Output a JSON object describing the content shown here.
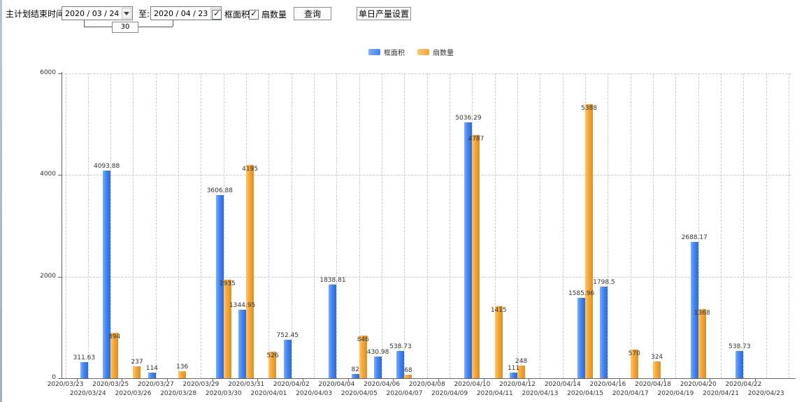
{
  "toolbar": {
    "label_main": "主计划结束时间:",
    "date_from": "2020 / 03 / 24",
    "label_to": "至:",
    "date_to": "2020 / 04 / 23",
    "days_value": "30",
    "checkbox_area_label": "框面积",
    "checkbox_fan_label": "扇数量",
    "checkbox_area_checked": true,
    "checkbox_fan_checked": true,
    "query_button": "查询",
    "daily_output_button": "单日产量设置"
  },
  "chart_data": {
    "type": "bar",
    "title": "",
    "xlabel": "",
    "ylabel": "",
    "ylim": [
      0,
      6000
    ],
    "yticks": [
      0,
      2000,
      4000,
      6000
    ],
    "grid": true,
    "legend_position": "top",
    "categories": [
      "2020/03/23",
      "2020/03/24",
      "2020/03/25",
      "2020/03/26",
      "2020/03/27",
      "2020/03/28",
      "2020/03/29",
      "2020/03/30",
      "2020/03/31",
      "2020/04/01",
      "2020/04/02",
      "2020/04/03",
      "2020/04/04",
      "2020/04/05",
      "2020/04/06",
      "2020/04/07",
      "2020/04/08",
      "2020/04/09",
      "2020/04/10",
      "2020/04/11",
      "2020/04/12",
      "2020/04/13",
      "2020/04/14",
      "2020/04/15",
      "2020/04/16",
      "2020/04/17",
      "2020/04/18",
      "2020/04/19",
      "2020/04/20",
      "2020/04/21",
      "2020/04/22",
      "2020/04/23"
    ],
    "series": [
      {
        "name": "框面积",
        "color": "#4285f4",
        "color_light": "#7fadf8",
        "color_dark": "#2a6cd8",
        "values": [
          null,
          311.63,
          4093.88,
          null,
          114,
          null,
          null,
          3606.88,
          1344.95,
          null,
          752.45,
          null,
          1838.81,
          82,
          430.98,
          538.73,
          null,
          null,
          5036.29,
          null,
          111,
          null,
          null,
          1585.96,
          1798.5,
          null,
          null,
          null,
          2688.17,
          null,
          538.73,
          null
        ]
      },
      {
        "name": "扇数量",
        "color": "#f6a637",
        "color_light": "#fac672",
        "color_dark": "#dd8f1e",
        "values": [
          null,
          null,
          894,
          237,
          null,
          136,
          null,
          1935,
          4195,
          526,
          null,
          null,
          null,
          846,
          null,
          68,
          null,
          null,
          4787,
          1415,
          248,
          null,
          null,
          5388,
          null,
          570,
          324,
          null,
          1368,
          null,
          null,
          null
        ]
      }
    ]
  }
}
